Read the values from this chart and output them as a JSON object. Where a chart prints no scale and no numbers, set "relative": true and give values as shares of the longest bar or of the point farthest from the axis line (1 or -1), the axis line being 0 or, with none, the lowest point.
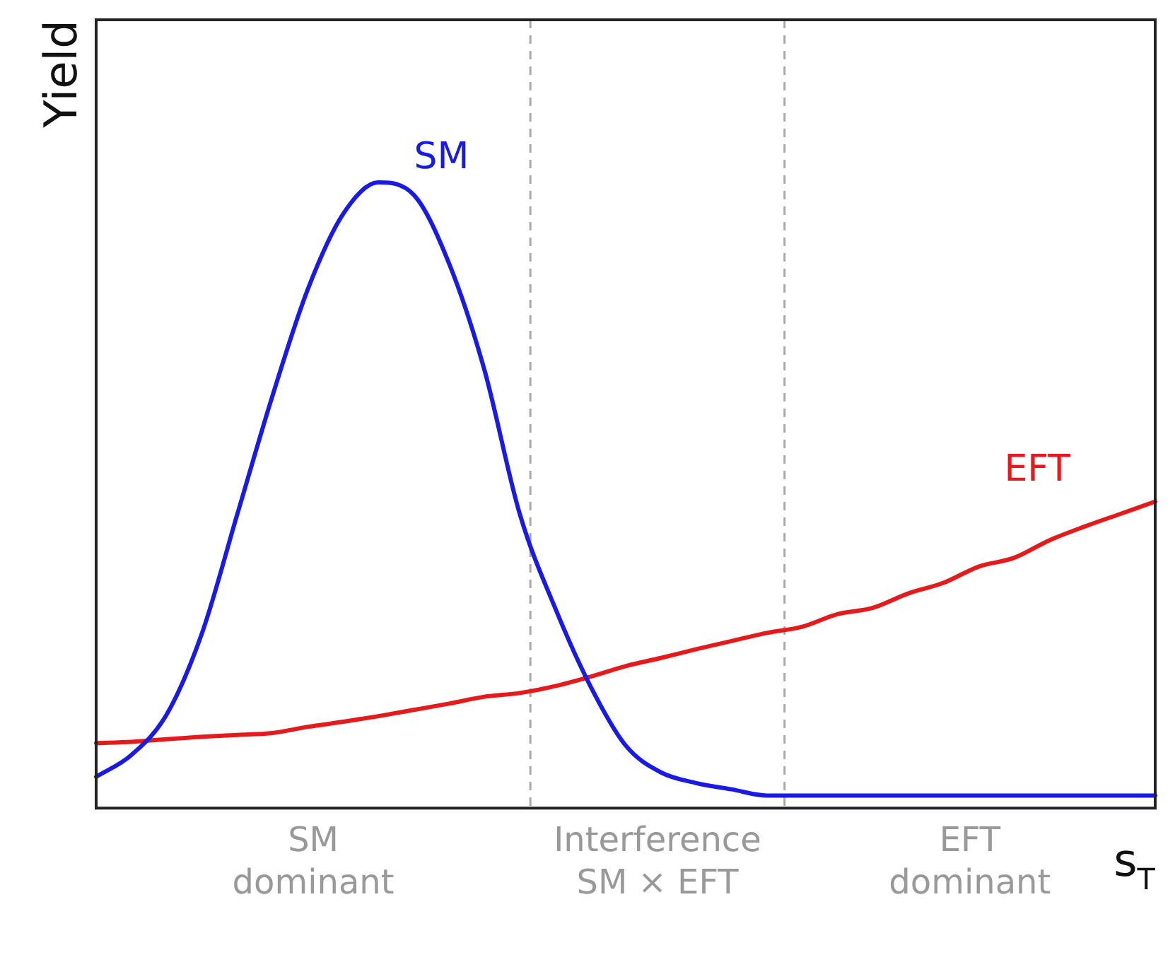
{
  "chart_data": {
    "type": "line",
    "relative": true,
    "xlabel": "s$_{T}$",
    "ylabel": "Yield",
    "categories": [
      null,
      null,
      null,
      null,
      null,
      null,
      null,
      null,
      null,
      null,
      null,
      null,
      null,
      null,
      null,
      null,
      null,
      null,
      null,
      null,
      null,
      null,
      null,
      null,
      null,
      null,
      null,
      null,
      null,
      null,
      null
    ],
    "series": [
      {
        "name": "SM",
        "color": "#1a1ae6",
        "values": [
          0.05,
          0.085,
          0.15,
          0.28,
          0.47,
          0.66,
          0.83,
          0.95,
          1.0,
          0.98,
          0.87,
          0.7,
          0.47,
          0.32,
          0.195,
          0.1,
          0.057,
          0.04,
          0.03,
          0.02,
          0.02,
          0.02,
          0.02,
          0.02,
          0.02,
          0.02,
          0.02,
          0.02,
          0.02,
          0.02,
          0.02
        ]
      },
      {
        "name": "EFT",
        "color": "#e61a1a",
        "values": [
          0.104,
          0.106,
          0.11,
          0.114,
          0.117,
          0.12,
          0.13,
          0.138,
          0.147,
          0.157,
          0.167,
          0.178,
          0.184,
          0.195,
          0.21,
          0.227,
          0.24,
          0.254,
          0.267,
          0.28,
          0.29,
          0.31,
          0.32,
          0.343,
          0.36,
          0.386,
          0.4,
          0.428,
          0.45,
          0.47,
          0.49
        ]
      }
    ],
    "annotations": [
      "SM dominant",
      "Interference SM × EFT",
      "EFT dominant"
    ],
    "grid": false,
    "legend": false,
    "marker": "none",
    "line_style": "solid"
  }
}
